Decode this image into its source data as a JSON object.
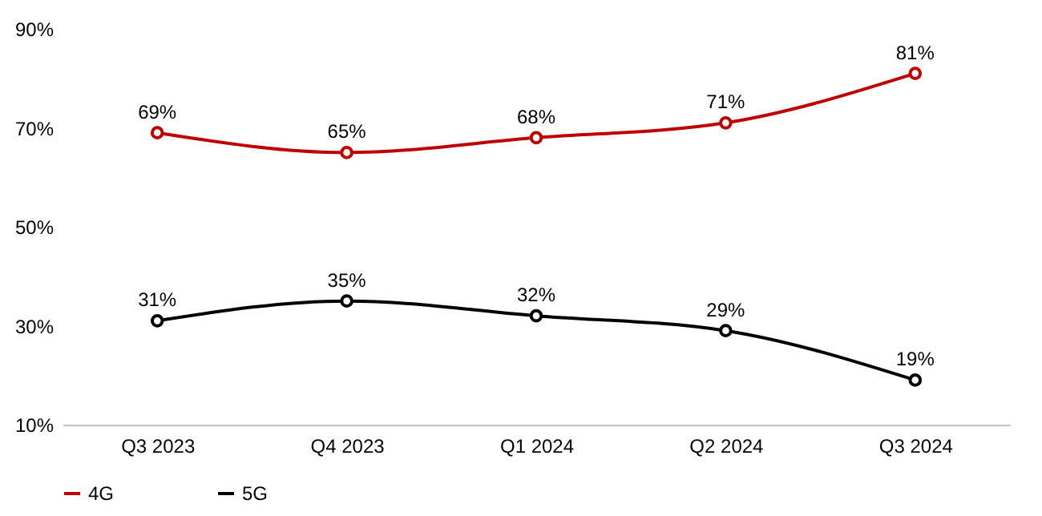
{
  "chart_data": {
    "type": "line",
    "categories": [
      "Q3 2023",
      "Q4 2023",
      "Q1 2024",
      "Q2 2024",
      "Q3 2024"
    ],
    "series": [
      {
        "name": "4G",
        "color": "#c00000",
        "values": [
          69,
          65,
          68,
          71,
          81
        ],
        "value_labels": [
          "69%",
          "65%",
          "68%",
          "71%",
          "81%"
        ]
      },
      {
        "name": "5G",
        "color": "#000000",
        "values": [
          31,
          35,
          32,
          29,
          19
        ],
        "value_labels": [
          "31%",
          "35%",
          "32%",
          "29%",
          "19%"
        ]
      }
    ],
    "ylim": [
      10,
      90
    ],
    "yticks": [
      {
        "value": 10,
        "label": "10%"
      },
      {
        "value": 30,
        "label": "30%"
      },
      {
        "value": 50,
        "label": "50%"
      },
      {
        "value": 70,
        "label": "70%"
      },
      {
        "value": 90,
        "label": "90%"
      }
    ],
    "grid": false,
    "legend": "bottom",
    "marker": "circle",
    "line_style": "solid"
  }
}
